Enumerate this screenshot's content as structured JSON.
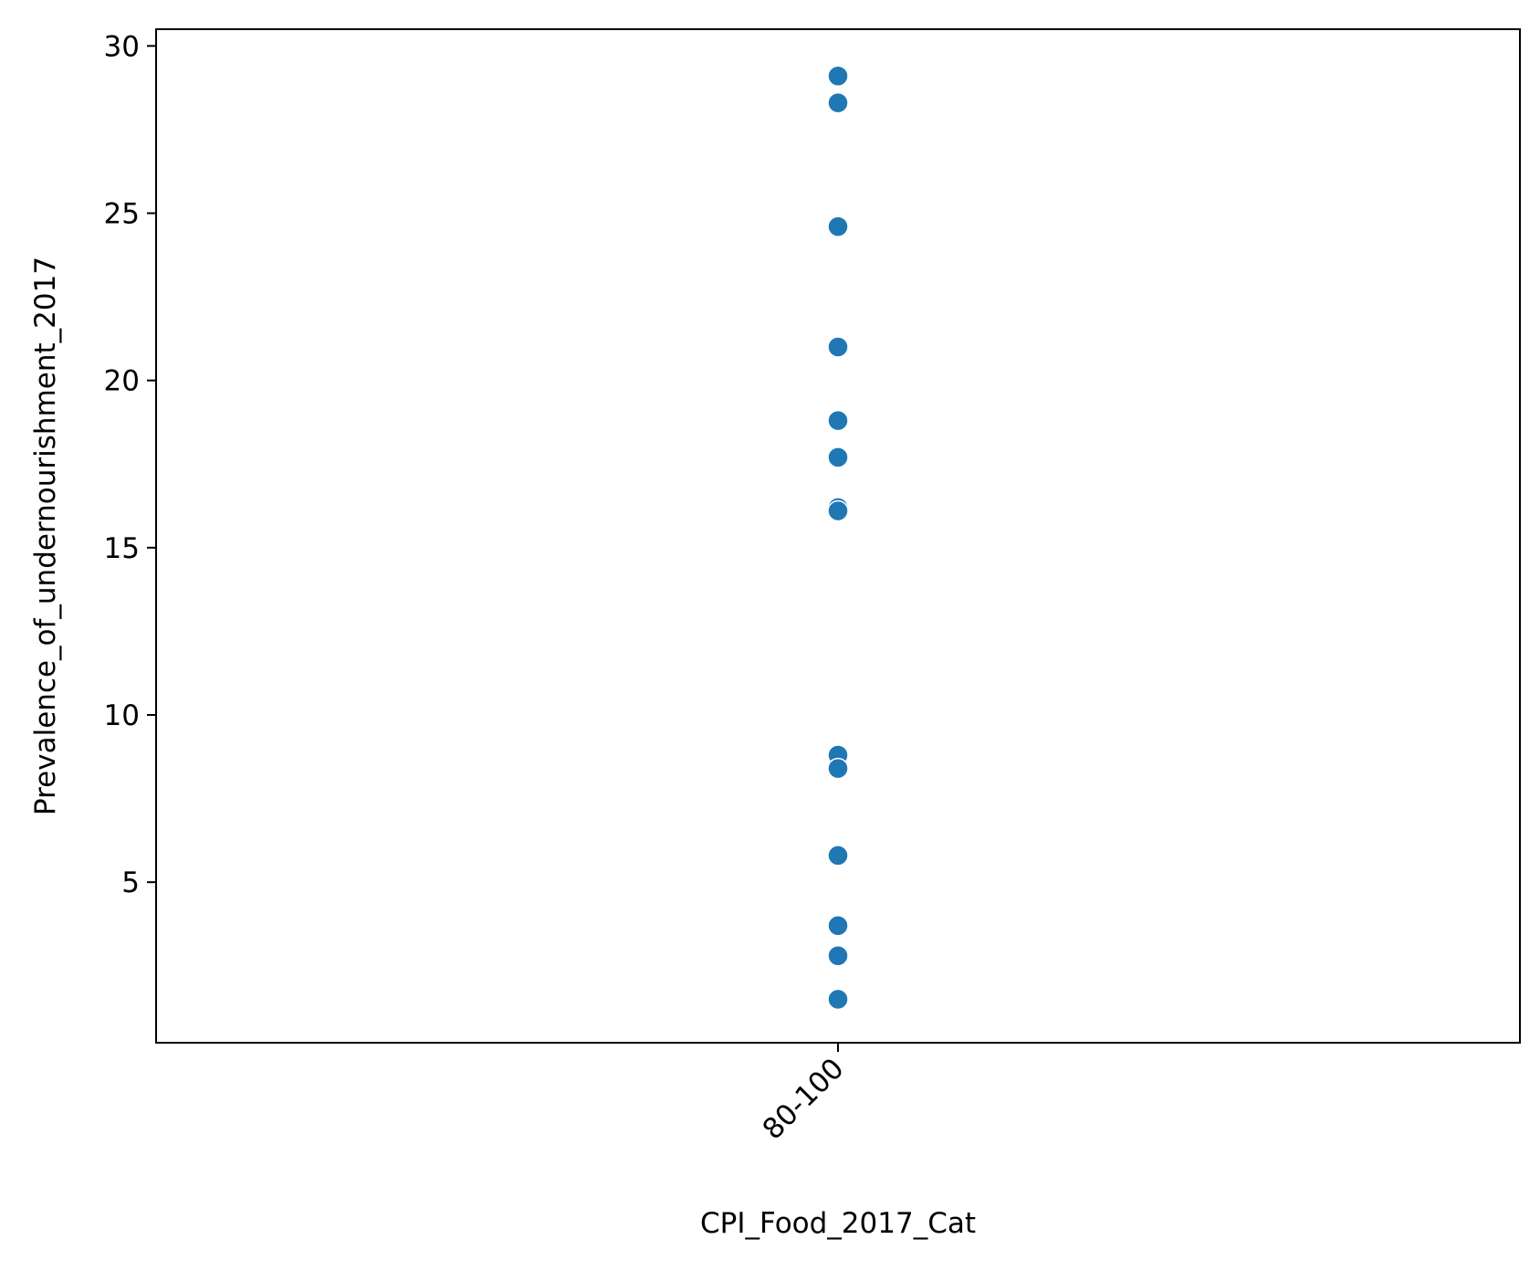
{
  "chart_data": {
    "type": "scatter",
    "title": "",
    "xlabel": "CPI_Food_2017_Cat",
    "ylabel": "Prevalence_of_undernourishment_2017",
    "categories": [
      "80-100"
    ],
    "ylim": [
      0.2,
      30.5
    ],
    "yticks": [
      5,
      10,
      15,
      20,
      25,
      30
    ],
    "ytick_labels": [
      "5",
      "10",
      "15",
      "20",
      "25",
      "30"
    ],
    "grid": false,
    "legend": "none",
    "series": [
      {
        "color": "#1f77b4",
        "points": [
          {
            "x": "80-100",
            "y": 29.1
          },
          {
            "x": "80-100",
            "y": 28.3
          },
          {
            "x": "80-100",
            "y": 24.6
          },
          {
            "x": "80-100",
            "y": 21.0
          },
          {
            "x": "80-100",
            "y": 18.8
          },
          {
            "x": "80-100",
            "y": 17.7
          },
          {
            "x": "80-100",
            "y": 16.2
          },
          {
            "x": "80-100",
            "y": 16.1
          },
          {
            "x": "80-100",
            "y": 8.8
          },
          {
            "x": "80-100",
            "y": 8.4
          },
          {
            "x": "80-100",
            "y": 5.8
          },
          {
            "x": "80-100",
            "y": 3.7
          },
          {
            "x": "80-100",
            "y": 2.8
          },
          {
            "x": "80-100",
            "y": 1.5
          }
        ]
      }
    ]
  }
}
